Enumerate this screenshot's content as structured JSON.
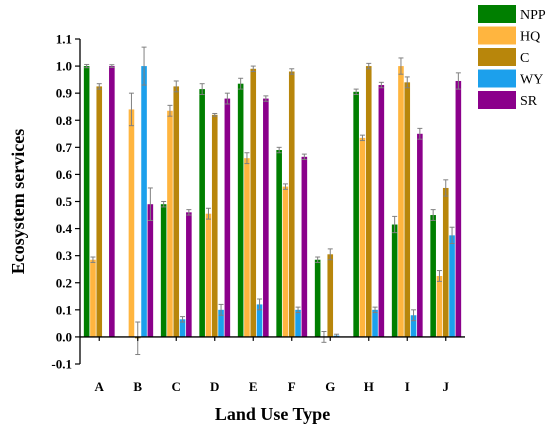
{
  "chart_data": {
    "type": "bar",
    "xlabel": "Land Use Type",
    "ylabel": "Ecosystem services",
    "ylim": [
      -0.1,
      1.1
    ],
    "yticks": [
      "-0.1",
      "0.0",
      "0.1",
      "0.2",
      "0.3",
      "0.4",
      "0.5",
      "0.6",
      "0.7",
      "0.8",
      "0.9",
      "1.0",
      "1.1"
    ],
    "categories": [
      "A",
      "B",
      "C",
      "D",
      "E",
      "F",
      "G",
      "H",
      "I",
      "J"
    ],
    "legend_position": "top-right",
    "series": [
      {
        "name": "NPP",
        "color": "#007F00",
        "values": [
          1.0,
          0.0,
          0.49,
          0.915,
          0.935,
          0.69,
          0.285,
          0.905,
          0.415,
          0.45
        ],
        "errors": [
          0.006,
          0,
          0.01,
          0.02,
          0.02,
          0.01,
          0.01,
          0.01,
          0.03,
          0.02
        ]
      },
      {
        "name": "HQ",
        "color": "#FFB53F",
        "values": [
          0.285,
          0.84,
          0.835,
          0.455,
          0.66,
          0.555,
          0.0,
          0.735,
          1.0,
          0.225
        ],
        "errors": [
          0.01,
          0.06,
          0.02,
          0.02,
          0.02,
          0.01,
          0.02,
          0.01,
          0.03,
          0.02
        ]
      },
      {
        "name": "C",
        "color": "#B8860B",
        "values": [
          0.925,
          -0.005,
          0.925,
          0.82,
          0.99,
          0.98,
          0.305,
          1.0,
          0.94,
          0.55
        ],
        "errors": [
          0.01,
          0.06,
          0.02,
          0.005,
          0.01,
          0.01,
          0.02,
          0.01,
          0.02,
          0.03
        ]
      },
      {
        "name": "WY",
        "color": "#1CA0EC",
        "values": [
          0.0,
          1.0,
          0.065,
          0.1,
          0.12,
          0.1,
          0.005,
          0.1,
          0.08,
          0.375
        ],
        "errors": [
          0,
          0.07,
          0.01,
          0.02,
          0.02,
          0.01,
          0.005,
          0.01,
          0.02,
          0.03
        ]
      },
      {
        "name": "SR",
        "color": "#8B008B",
        "values": [
          1.0,
          0.49,
          0.46,
          0.88,
          0.88,
          0.665,
          0.0,
          0.93,
          0.75,
          0.945
        ],
        "errors": [
          0.005,
          0.06,
          0.01,
          0.02,
          0.01,
          0.01,
          0,
          0.01,
          0.02,
          0.03
        ]
      }
    ]
  }
}
